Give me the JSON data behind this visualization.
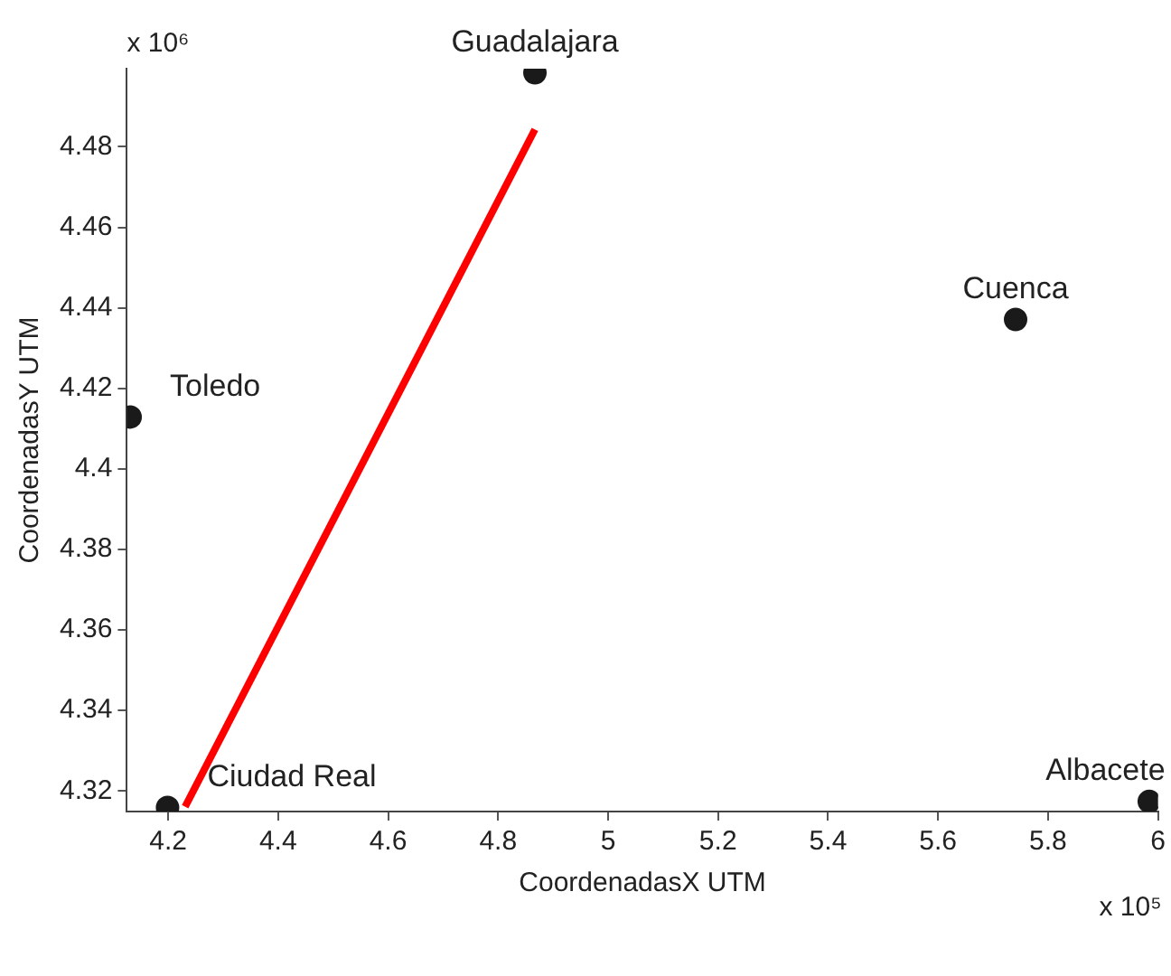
{
  "chart_data": {
    "type": "scatter",
    "xlabel": "CoordenadasX UTM",
    "ylabel": "CoordenadasY UTM",
    "series": [
      {
        "type": "scatter",
        "color": "#1a1a1a",
        "marker": "circle",
        "x": [
          4.867,
          5.741,
          4.131,
          4.199,
          5.984
        ],
        "values": [
          4.4984,
          4.4371,
          4.4129,
          4.3159,
          4.3174
        ]
      },
      {
        "type": "line",
        "color": "#ff0000",
        "marker": "none",
        "x": [
          4.231,
          4.867
        ],
        "values": [
          4.3161,
          4.4843
        ]
      }
    ],
    "xlim": [
      4.125,
      6.0
    ],
    "ylim": [
      4.3149,
      4.4994
    ],
    "xticks": [
      4.2,
      4.4,
      4.6,
      4.8,
      5,
      5.2,
      5.4,
      5.6,
      5.8,
      6
    ],
    "yticks": [
      4.32,
      4.34,
      4.36,
      4.38,
      4.4,
      4.42,
      4.44,
      4.46,
      4.48
    ],
    "annotations": [
      {
        "text": "Guadalajara",
        "x": 4.867,
        "y": 4.4984
      },
      {
        "text": "Cuenca",
        "x": 5.741,
        "y": 4.4371
      },
      {
        "text": "Toledo",
        "x": 4.131,
        "y": 4.4129
      },
      {
        "text": "Ciudad Real",
        "x": 4.199,
        "y": 4.3159
      },
      {
        "text": "Albacete",
        "x": 5.984,
        "y": 4.3174
      },
      "x 10⁶",
      "x 10⁵"
    ],
    "grid": false,
    "legend": false
  }
}
